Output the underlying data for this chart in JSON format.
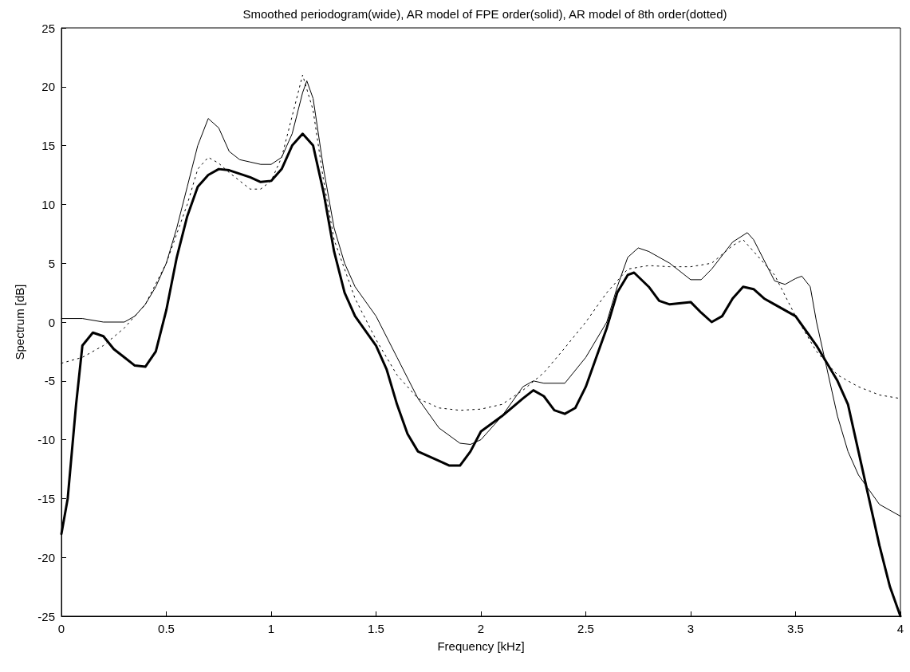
{
  "chart_data": {
    "type": "line",
    "title": "Smoothed periodogram(wide), AR model of FPE order(solid), AR model of 8th order(dotted)",
    "xlabel": "Frequency [kHz]",
    "ylabel": "Spectrum [dB]",
    "xlim": [
      0,
      4
    ],
    "xticks": [
      0,
      0.5,
      1,
      1.5,
      2,
      2.5,
      3,
      3.5,
      4
    ],
    "ylim": [
      -25,
      25
    ],
    "yticks": [
      -25,
      -20,
      -15,
      -10,
      -5,
      0,
      5,
      10,
      15,
      20,
      25
    ],
    "grid": false,
    "marker": "none",
    "series": [
      {
        "color": "#000000",
        "line_style": "solid",
        "x": [
          0,
          0.1,
          0.2,
          0.3,
          0.35,
          0.4,
          0.45,
          0.5,
          0.55,
          0.6,
          0.65,
          0.7,
          0.75,
          0.8,
          0.85,
          0.9,
          0.95,
          1.0,
          1.05,
          1.1,
          1.15,
          1.17,
          1.2,
          1.25,
          1.3,
          1.35,
          1.4,
          1.5,
          1.6,
          1.7,
          1.8,
          1.9,
          1.95,
          2.0,
          2.1,
          2.2,
          2.25,
          2.3,
          2.4,
          2.5,
          2.6,
          2.65,
          2.7,
          2.75,
          2.8,
          2.9,
          3.0,
          3.05,
          3.1,
          3.2,
          3.27,
          3.3,
          3.4,
          3.45,
          3.5,
          3.53,
          3.57,
          3.6,
          3.65,
          3.7,
          3.75,
          3.8,
          3.9,
          4.0
        ],
        "values": [
          0.3,
          0.3,
          0.0,
          0.0,
          0.5,
          1.5,
          3,
          5,
          8,
          11.5,
          15,
          17.3,
          16.5,
          14.5,
          13.8,
          13.6,
          13.4,
          13.4,
          14,
          16,
          19.5,
          20.5,
          19,
          13,
          8,
          5,
          3,
          0.5,
          -3,
          -6.5,
          -9,
          -10.3,
          -10.4,
          -10,
          -8,
          -5.5,
          -5,
          -5.2,
          -5.2,
          -3,
          0,
          3,
          5.5,
          6.3,
          6,
          5,
          3.6,
          3.6,
          4.5,
          6.8,
          7.6,
          7,
          3.5,
          3.2,
          3.7,
          3.9,
          3,
          0,
          -4,
          -8,
          -11,
          -13,
          -15.5,
          -16.5
        ]
      },
      {
        "color": "#000000",
        "line_style": "solid",
        "x": [
          0,
          0.03,
          0.07,
          0.1,
          0.15,
          0.2,
          0.25,
          0.3,
          0.35,
          0.4,
          0.45,
          0.5,
          0.55,
          0.6,
          0.65,
          0.7,
          0.75,
          0.8,
          0.9,
          0.95,
          1.0,
          1.05,
          1.1,
          1.15,
          1.2,
          1.25,
          1.3,
          1.35,
          1.4,
          1.5,
          1.55,
          1.6,
          1.65,
          1.7,
          1.8,
          1.85,
          1.9,
          1.95,
          2.0,
          2.1,
          2.2,
          2.25,
          2.3,
          2.35,
          2.4,
          2.45,
          2.5,
          2.55,
          2.6,
          2.65,
          2.7,
          2.73,
          2.8,
          2.85,
          2.9,
          3.0,
          3.05,
          3.1,
          3.15,
          3.2,
          3.25,
          3.3,
          3.35,
          3.4,
          3.5,
          3.6,
          3.7,
          3.75,
          3.8,
          3.85,
          3.9,
          3.95,
          4.0
        ],
        "values": [
          -18,
          -15,
          -7,
          -2,
          -0.9,
          -1.2,
          -2.3,
          -3,
          -3.7,
          -3.8,
          -2.5,
          1,
          5.5,
          9,
          11.5,
          12.5,
          13,
          12.9,
          12.3,
          11.9,
          12,
          13,
          15,
          16,
          15,
          11,
          6,
          2.5,
          0.5,
          -2,
          -4,
          -7,
          -9.5,
          -11,
          -11.8,
          -12.2,
          -12.2,
          -11,
          -9.3,
          -8,
          -6.5,
          -5.8,
          -6.3,
          -7.5,
          -7.8,
          -7.3,
          -5.5,
          -3,
          -0.5,
          2.5,
          4,
          4.2,
          3,
          1.8,
          1.5,
          1.7,
          0.8,
          0,
          0.5,
          2,
          3,
          2.8,
          2,
          1.5,
          0.5,
          -2,
          -5,
          -7,
          -11,
          -15,
          -19,
          -22.5,
          -25
        ]
      },
      {
        "color": "#000000",
        "line_style": "dotted",
        "x": [
          0,
          0.1,
          0.2,
          0.3,
          0.4,
          0.5,
          0.6,
          0.65,
          0.7,
          0.75,
          0.8,
          0.9,
          0.95,
          1.0,
          1.05,
          1.1,
          1.15,
          1.2,
          1.25,
          1.3,
          1.4,
          1.5,
          1.6,
          1.7,
          1.8,
          1.9,
          2.0,
          2.1,
          2.2,
          2.3,
          2.4,
          2.5,
          2.6,
          2.7,
          2.8,
          2.9,
          3.0,
          3.1,
          3.2,
          3.25,
          3.3,
          3.4,
          3.5,
          3.6,
          3.7,
          3.8,
          3.9,
          4.0
        ],
        "values": [
          -3.5,
          -3,
          -2,
          -0.5,
          1.5,
          5,
          10,
          13,
          14,
          13.5,
          12.7,
          11.3,
          11.3,
          12,
          14,
          17.5,
          21,
          18,
          12,
          7,
          2,
          -1.5,
          -4.5,
          -6.5,
          -7.3,
          -7.5,
          -7.4,
          -7,
          -5.8,
          -4.3,
          -2.2,
          0,
          2.5,
          4.5,
          4.8,
          4.7,
          4.7,
          5,
          6.5,
          7,
          6,
          4,
          0.5,
          -2.5,
          -4.5,
          -5.5,
          -6.2,
          -6.5
        ]
      }
    ]
  }
}
